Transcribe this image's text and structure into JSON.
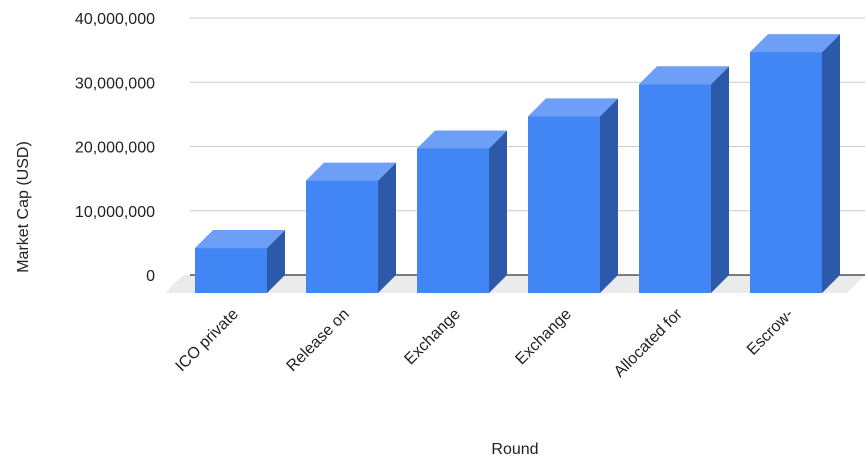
{
  "chart_data": {
    "type": "bar",
    "style": "3d",
    "title": "",
    "xlabel": "Round",
    "ylabel": "Market Cap (USD)",
    "ylim": [
      0,
      40000000
    ],
    "yticks": [
      0,
      10000000,
      20000000,
      30000000,
      40000000
    ],
    "ytick_labels": [
      "0",
      "10,000,000",
      "20,000,000",
      "30,000,000",
      "40,000,000"
    ],
    "categories": [
      "ICO private",
      "Release on",
      "Exchange",
      "Exchange",
      "Allocated for",
      "Escrow-"
    ],
    "values": [
      7000000,
      17500000,
      22500000,
      27500000,
      32500000,
      37500000
    ],
    "grid": true,
    "legend": "none",
    "colors": {
      "bar_front": "#4285f4",
      "bar_top": "#6d9ff7",
      "bar_side": "#2d5aa8",
      "floor": "#ebebeb",
      "grid": "#cccccc",
      "baseline": "#333333"
    }
  }
}
